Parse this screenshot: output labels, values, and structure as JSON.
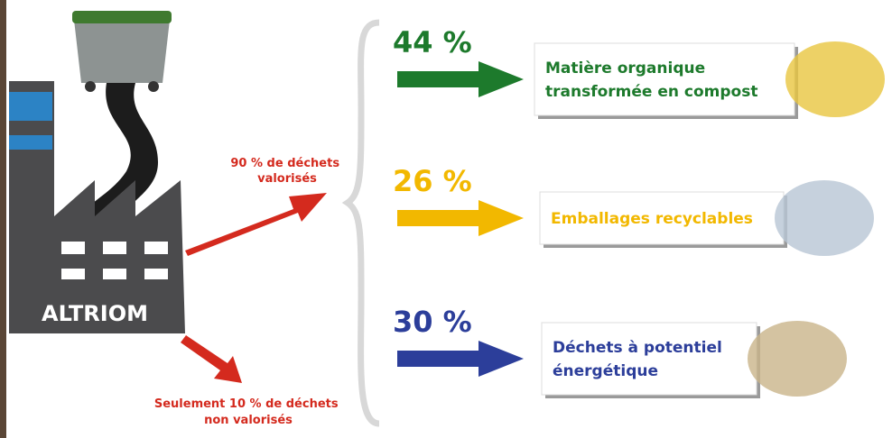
{
  "factory": {
    "name": "ALTRIOM"
  },
  "valorised": {
    "lines": [
      "90 % de déchets",
      "valorisés"
    ]
  },
  "not_valorised": {
    "lines": [
      "Seulement 10 % de déchets",
      "non valorisés"
    ]
  },
  "streams": [
    {
      "percent": "44 %",
      "lines": [
        "Matière organique",
        "transformée en compost"
      ],
      "color": "#1d7a2c"
    },
    {
      "percent": "26 %",
      "lines": [
        "Emballages recyclables"
      ],
      "color": "#f2b800"
    },
    {
      "percent": "30 %",
      "lines": [
        "Déchets à potentiel",
        "énergétique"
      ],
      "color": "#2c3e9a"
    }
  ]
}
